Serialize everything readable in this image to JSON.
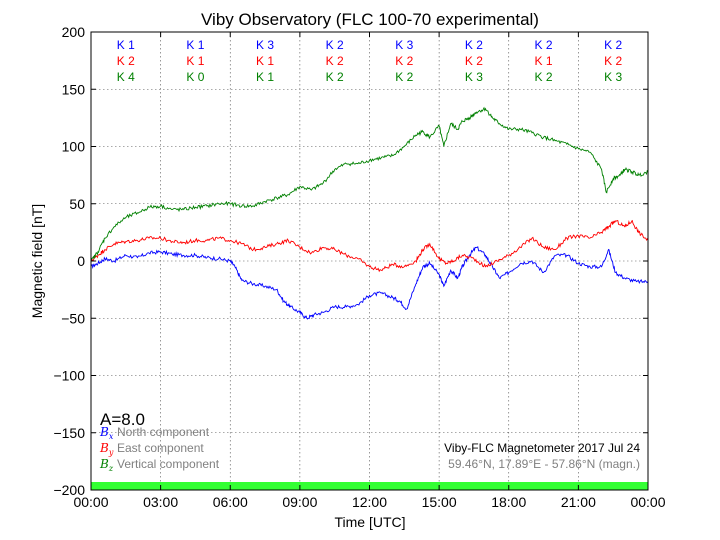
{
  "chart_data": {
    "type": "line",
    "title": "Viby Observatory (FLC 100-70 experimental)",
    "xlabel": "Time [UTC]",
    "ylabel": "Magnetic field [nT]",
    "xlim": [
      0,
      24
    ],
    "ylim": [
      -200,
      200
    ],
    "grid": true,
    "x_tick_labels": [
      "00:00",
      "03:00",
      "06:00",
      "09:00",
      "12:00",
      "15:00",
      "18:00",
      "21:00",
      "00:00"
    ],
    "y_tick_labels": [
      "200",
      "150",
      "100",
      "50",
      "0",
      "−50",
      "−100",
      "−150",
      "−200"
    ],
    "y_ticks": [
      200,
      150,
      100,
      50,
      0,
      -50,
      -100,
      -150,
      -200
    ],
    "k_indices": {
      "colors": [
        "#0000ff",
        "#ff0000",
        "#008000"
      ],
      "rows": [
        [
          "K 1",
          "K 1",
          "K 3",
          "K 2",
          "K 3",
          "K 2",
          "K 2",
          "K 2"
        ],
        [
          "K 2",
          "K 1",
          "K 1",
          "K 2",
          "K 2",
          "K 2",
          "K 1",
          "K 2"
        ],
        [
          "K 4",
          "K 0",
          "K 1",
          "K 2",
          "K 2",
          "K 3",
          "K 2",
          "K 3"
        ]
      ]
    },
    "a_index": "A=8.0",
    "legend": [
      {
        "symbol": "B",
        "sub": "x",
        "label": "North component",
        "color": "#0000ff"
      },
      {
        "symbol": "B",
        "sub": "y",
        "label": "East component",
        "color": "#ff0000"
      },
      {
        "symbol": "B",
        "sub": "z",
        "label": "Vertical component",
        "color": "#008000"
      }
    ],
    "info_line1": "Viby-FLC Magnetometer 2017 Jul 24",
    "info_line2": "59.46°N, 17.89°E - 57.86°N (magn.)",
    "status_bar_color": "#33ff33",
    "series": [
      {
        "name": "Bx",
        "color": "#0000ff",
        "x": [
          0,
          0.3,
          0.6,
          1.0,
          1.5,
          2.0,
          2.5,
          3.0,
          3.5,
          4.0,
          4.5,
          5.0,
          5.5,
          6.0,
          6.2,
          6.5,
          7.0,
          7.5,
          8.0,
          8.3,
          8.6,
          9.0,
          9.3,
          9.6,
          10.0,
          10.5,
          11.0,
          11.5,
          12.0,
          12.5,
          13.0,
          13.3,
          13.6,
          14.0,
          14.3,
          14.6,
          15.0,
          15.2,
          15.5,
          15.8,
          16.0,
          16.3,
          16.6,
          17.0,
          17.3,
          17.6,
          18.0,
          18.5,
          19.0,
          19.5,
          20.0,
          20.5,
          21.0,
          21.5,
          22.0,
          22.3,
          22.6,
          23.0,
          23.5,
          24.0
        ],
        "y": [
          -5,
          -2,
          2,
          0,
          5,
          3,
          7,
          8,
          6,
          5,
          5,
          3,
          2,
          0,
          -5,
          -17,
          -20,
          -22,
          -25,
          -35,
          -40,
          -45,
          -50,
          -47,
          -45,
          -40,
          -40,
          -38,
          -30,
          -28,
          -32,
          -35,
          -42,
          -20,
          -5,
          -2,
          -12,
          -22,
          -8,
          -15,
          -5,
          5,
          12,
          5,
          -5,
          -15,
          -10,
          -2,
          0,
          -10,
          5,
          5,
          -2,
          -5,
          -5,
          10,
          -10,
          -15,
          -18,
          -18
        ]
      },
      {
        "name": "By",
        "color": "#ff0000",
        "x": [
          0,
          0.3,
          0.6,
          1.0,
          1.5,
          2.0,
          2.5,
          3.0,
          3.5,
          4.0,
          4.5,
          5.0,
          5.5,
          6.0,
          6.5,
          7.0,
          7.5,
          8.0,
          8.5,
          9.0,
          9.5,
          10.0,
          10.5,
          11.0,
          11.5,
          12.0,
          12.5,
          13.0,
          13.5,
          14.0,
          14.3,
          14.6,
          15.0,
          15.3,
          15.6,
          16.0,
          16.5,
          17.0,
          17.5,
          18.0,
          18.5,
          19.0,
          19.5,
          20.0,
          20.5,
          21.0,
          21.5,
          22.0,
          22.3,
          22.6,
          23.0,
          23.3,
          23.6,
          24.0
        ],
        "y": [
          0,
          5,
          10,
          15,
          17,
          18,
          20,
          20,
          17,
          16,
          18,
          18,
          20,
          18,
          15,
          10,
          12,
          15,
          18,
          12,
          7,
          12,
          10,
          5,
          2,
          -5,
          -8,
          -3,
          -5,
          0,
          10,
          15,
          2,
          -2,
          0,
          5,
          2,
          -5,
          0,
          5,
          12,
          20,
          12,
          10,
          20,
          22,
          20,
          25,
          30,
          35,
          30,
          35,
          25,
          18
        ]
      },
      {
        "name": "Bz",
        "color": "#008000",
        "x": [
          0,
          0.3,
          0.6,
          1.0,
          1.5,
          2.0,
          2.5,
          3.0,
          3.5,
          4.0,
          4.5,
          5.0,
          5.5,
          6.0,
          6.5,
          7.0,
          7.5,
          8.0,
          8.5,
          9.0,
          9.5,
          10.0,
          10.5,
          11.0,
          11.5,
          12.0,
          12.5,
          13.0,
          13.5,
          14.0,
          14.3,
          14.6,
          15.0,
          15.2,
          15.5,
          15.8,
          16.0,
          16.3,
          16.6,
          17.0,
          17.3,
          17.6,
          18.0,
          18.5,
          19.0,
          19.5,
          20.0,
          20.5,
          21.0,
          21.5,
          22.0,
          22.2,
          22.5,
          22.8,
          23.0,
          23.3,
          23.6,
          24.0
        ],
        "y": [
          0,
          8,
          20,
          30,
          38,
          42,
          47,
          48,
          45,
          45,
          47,
          48,
          50,
          50,
          48,
          48,
          52,
          55,
          58,
          65,
          62,
          68,
          80,
          85,
          85,
          88,
          90,
          92,
          100,
          110,
          113,
          108,
          118,
          100,
          120,
          115,
          122,
          125,
          130,
          133,
          125,
          120,
          115,
          115,
          112,
          108,
          105,
          102,
          98,
          95,
          80,
          60,
          72,
          75,
          80,
          78,
          75,
          78
        ]
      }
    ]
  }
}
